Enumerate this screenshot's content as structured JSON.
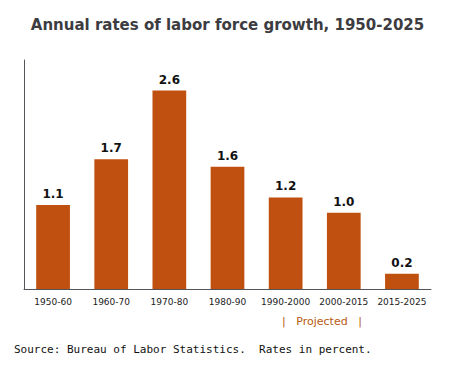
{
  "chart_data": {
    "type": "bar",
    "title": "Annual rates of labor force growth, 1950-2025",
    "categories": [
      "1950-60",
      "1960-70",
      "1970-80",
      "1980-90",
      "1990-2000",
      "2000-2015",
      "2015-2025"
    ],
    "values": [
      1.1,
      1.7,
      2.6,
      1.6,
      1.2,
      1.0,
      0.2
    ],
    "value_labels": [
      "1.1",
      "1.7",
      "2.6",
      "1.6",
      "1.2",
      "1.0",
      "0.2"
    ],
    "data_labels": true,
    "color": "#c05010",
    "ylim": [
      0,
      3.0
    ],
    "tick_labels": "x",
    "grid": false,
    "annotations": [
      "|   Projected   |",
      "Source: Bureau of Labor Statistics.  Rates in percent."
    ]
  }
}
